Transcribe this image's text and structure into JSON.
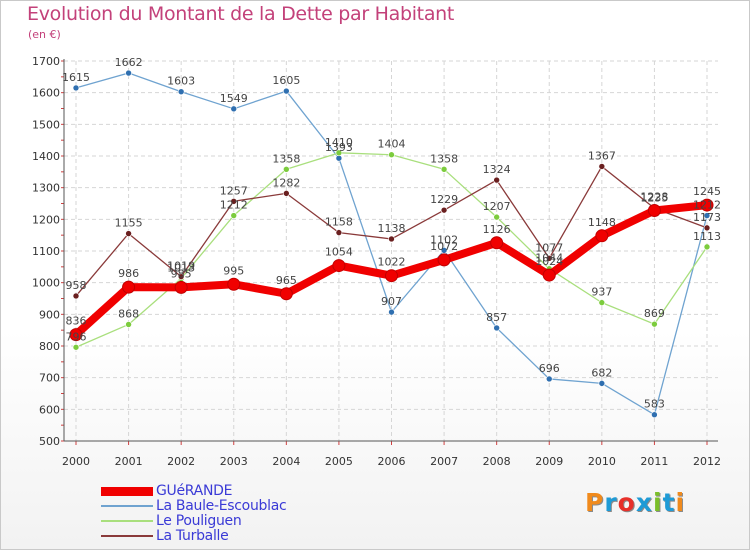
{
  "title": "Evolution du Montant de la Dette par Habitant",
  "subtitle": "(en €)",
  "brand": "Proxiti",
  "brand_colors": [
    "#f08a1c",
    "#1f9bd6",
    "#e7302a",
    "#1f9bd6",
    "#7cbf2a",
    "#1f9bd6",
    "#f08a1c"
  ],
  "chart_data": {
    "type": "line",
    "title": "Evolution du Montant de la Dette par Habitant",
    "subtitle": "(en €)",
    "xlabel": "",
    "ylabel": "",
    "ylim": [
      500,
      1700
    ],
    "yticks": [
      500,
      600,
      700,
      800,
      900,
      1000,
      1100,
      1200,
      1300,
      1400,
      1500,
      1600,
      1700
    ],
    "x": [
      "2000",
      "2001",
      "2002",
      "2003",
      "2004",
      "2005",
      "2006",
      "2007",
      "2008",
      "2009",
      "2010",
      "2011",
      "2012"
    ],
    "grid": true,
    "legend_position": "bottom-left",
    "series": [
      {
        "name": "La Baule-Escoublac",
        "color": "#6fa3d0",
        "marker": "#2f6fb0",
        "width": 1.3,
        "values": [
          1615,
          1662,
          1603,
          1549,
          1605,
          1393,
          907,
          1102,
          857,
          696,
          682,
          583,
          1212
        ]
      },
      {
        "name": "Le Pouliguen",
        "color": "#a9df7d",
        "marker": "#7ccc3d",
        "width": 1.3,
        "values": [
          796,
          868,
          1013,
          1212,
          1358,
          1410,
          1404,
          1358,
          1207,
          1044,
          937,
          869,
          1113
        ]
      },
      {
        "name": "La Turballe",
        "color": "#8a3a3a",
        "marker": "#6a1f1f",
        "width": 1.3,
        "values": [
          958,
          1155,
          1019,
          1257,
          1282,
          1158,
          1138,
          1229,
          1324,
          1077,
          1367,
          1235,
          1173
        ]
      },
      {
        "name": "GUéRANDE",
        "color": "#f00000",
        "marker": "#f00000",
        "width": 8,
        "values": [
          836,
          986,
          985,
          995,
          965,
          1054,
          1022,
          1072,
          1126,
          1024,
          1148,
          1228,
          1245
        ]
      }
    ],
    "legend_order": [
      "GUéRANDE",
      "La Baule-Escoublac",
      "Le Pouliguen",
      "La Turballe"
    ]
  }
}
